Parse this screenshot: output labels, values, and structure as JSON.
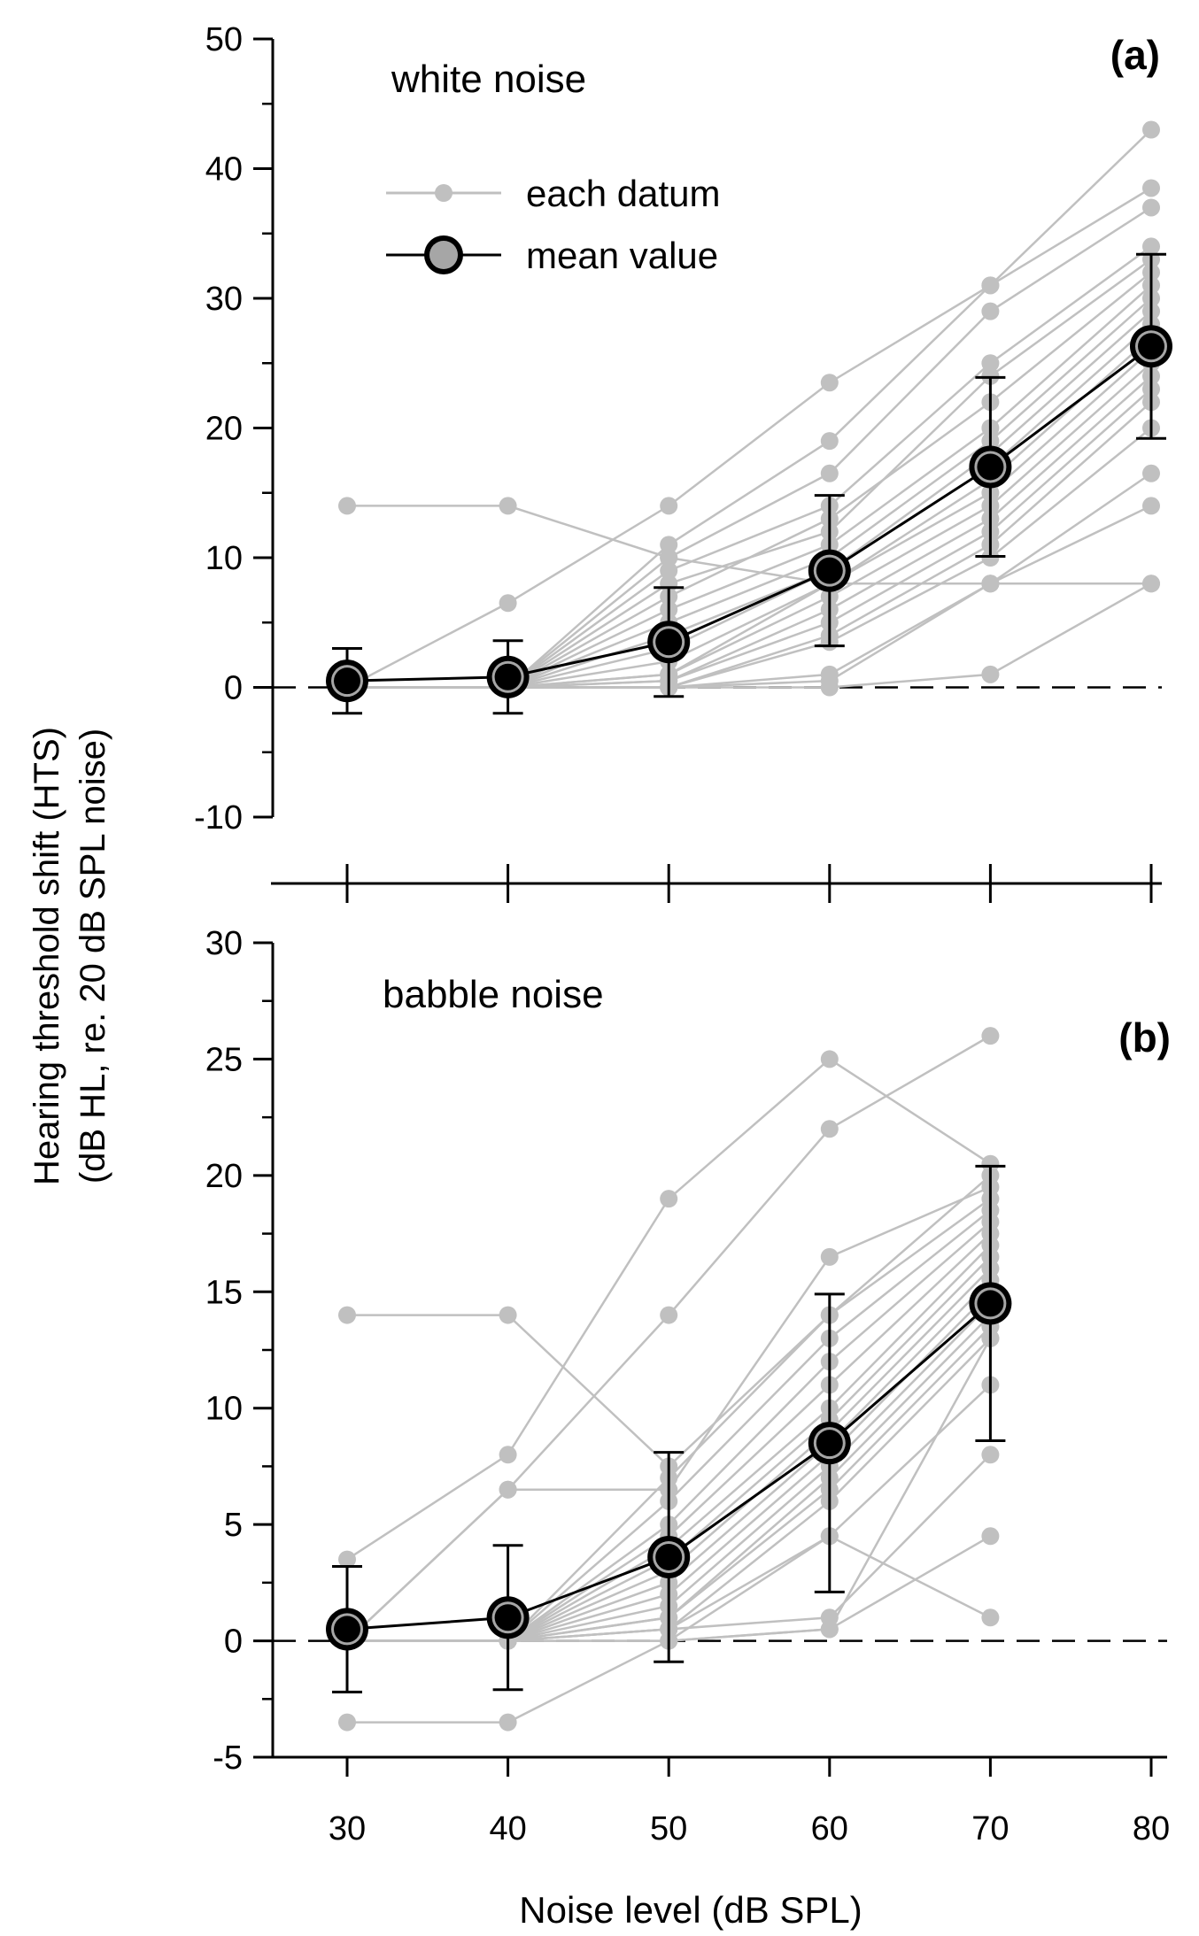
{
  "figure": {
    "ylabel_line1": "Hearing threshold shift (HTS)",
    "ylabel_line2": "(dB HL, re. 20 dB SPL noise)",
    "xlabel": "Noise level (dB SPL)",
    "x_tick_labels": [
      "30",
      "40",
      "50",
      "60",
      "70",
      "80"
    ],
    "legend": {
      "datum": "each datum",
      "mean": "mean value"
    },
    "colors": {
      "individual": "#c0c0c0",
      "mean_fill": "#000000",
      "mean_ring": "#a6a6a6",
      "axis": "#000000"
    }
  },
  "chart_data": [
    {
      "id": "a",
      "type": "line",
      "tag": "(a)",
      "annotation": "white noise",
      "xlabel": "Noise level (dB SPL)",
      "ylabel": "Hearing threshold shift (HTS) (dB HL, re. 20 dB SPL noise)",
      "x": [
        30,
        40,
        50,
        60,
        70,
        80
      ],
      "ylim": [
        -10,
        50
      ],
      "yticks": [
        -10,
        0,
        10,
        20,
        30,
        40,
        50
      ],
      "ytick_labels": [
        "-10",
        "0",
        "10",
        "20",
        "30",
        "40",
        "50"
      ],
      "reference_line": 0,
      "mean": [
        0.5,
        0.8,
        3.5,
        9.0,
        17.0,
        26.3
      ],
      "error": [
        2.5,
        2.8,
        4.2,
        5.8,
        6.9,
        7.1
      ],
      "individuals": [
        [
          14,
          14,
          10,
          8,
          8,
          8
        ],
        [
          0,
          6.5,
          14,
          23.5,
          31,
          43
        ],
        [
          0,
          0,
          11,
          19,
          31,
          38.5
        ],
        [
          0,
          0,
          10,
          16.5,
          29,
          37
        ],
        [
          0,
          0,
          9,
          14,
          25,
          34
        ],
        [
          0,
          0,
          8,
          12,
          24,
          33
        ],
        [
          0,
          0,
          7,
          13,
          22,
          32
        ],
        [
          0,
          0,
          6,
          11,
          20,
          31
        ],
        [
          0,
          0,
          5,
          10,
          19,
          30
        ],
        [
          0,
          0,
          4,
          9,
          18,
          29
        ],
        [
          0,
          0,
          3,
          9,
          17,
          28
        ],
        [
          0,
          0,
          2,
          8,
          16,
          27
        ],
        [
          0,
          0,
          1,
          8,
          15,
          26
        ],
        [
          0,
          0,
          1,
          7,
          14,
          25
        ],
        [
          0,
          0,
          0.5,
          6,
          13,
          24
        ],
        [
          0,
          0,
          0.5,
          5,
          12,
          23
        ],
        [
          0,
          0,
          0,
          4,
          11,
          22
        ],
        [
          0,
          0,
          0,
          3.5,
          10,
          20
        ],
        [
          0,
          0,
          0,
          1,
          8,
          16.5
        ],
        [
          0,
          0,
          0,
          0.5,
          8,
          14
        ],
        [
          0,
          0,
          0,
          0,
          1,
          8
        ]
      ]
    },
    {
      "id": "b",
      "type": "line",
      "tag": "(b)",
      "annotation": "babble noise",
      "xlabel": "Noise level (dB SPL)",
      "ylabel": "Hearing threshold shift (HTS) (dB HL, re. 20 dB SPL noise)",
      "x": [
        30,
        40,
        50,
        60,
        70
      ],
      "ylim": [
        -5,
        30
      ],
      "yticks": [
        -5,
        0,
        5,
        10,
        15,
        20,
        25,
        30
      ],
      "ytick_labels": [
        "-5",
        "0",
        "5",
        "10",
        "15",
        "20",
        "25",
        "30"
      ],
      "reference_line": 0,
      "mean": [
        0.5,
        1.0,
        3.6,
        8.5,
        14.5
      ],
      "error": [
        2.7,
        3.1,
        4.5,
        6.4,
        5.9
      ],
      "individuals": [
        [
          14,
          14,
          7.5,
          14,
          20
        ],
        [
          3.5,
          8,
          19,
          25,
          20.5
        ],
        [
          0,
          6.5,
          14,
          22,
          26
        ],
        [
          0,
          6.5,
          6.5,
          16.5,
          19.5
        ],
        [
          0,
          0,
          7,
          14,
          19
        ],
        [
          0,
          0,
          6,
          13,
          18.5
        ],
        [
          0,
          0,
          5,
          12,
          18
        ],
        [
          0,
          0,
          4.5,
          11,
          17.5
        ],
        [
          0,
          0,
          4,
          10,
          17
        ],
        [
          0,
          0,
          3.5,
          9.5,
          16.5
        ],
        [
          0,
          0,
          3,
          9,
          16
        ],
        [
          0,
          0,
          2.5,
          8.5,
          15.5
        ],
        [
          0,
          0,
          2,
          8,
          15
        ],
        [
          0,
          0,
          1.5,
          7.5,
          14.5
        ],
        [
          0,
          0,
          1,
          7,
          14
        ],
        [
          0,
          0,
          1,
          6.5,
          13.5
        ],
        [
          0,
          0,
          0.5,
          6,
          13
        ],
        [
          0,
          0,
          0.5,
          4.5,
          11
        ],
        [
          0,
          0,
          0.5,
          1,
          8
        ],
        [
          0,
          0,
          0,
          0.5,
          4.5
        ],
        [
          0,
          0,
          0,
          4.5,
          1
        ],
        [
          -3.5,
          -3.5,
          0,
          0.5,
          13
        ]
      ]
    }
  ]
}
